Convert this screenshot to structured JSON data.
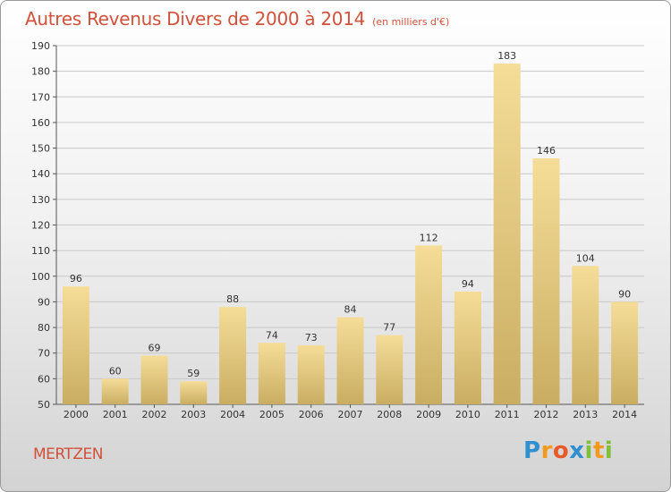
{
  "header": {
    "title": "Autres Revenus Divers de 2000 à 2014",
    "unit_note": "(en milliers d'€)"
  },
  "footer": {
    "commune": "MERTZEN",
    "logo_letters": [
      {
        "ch": "P",
        "color": "#2f8fd0"
      },
      {
        "ch": "r",
        "color": "#f39a1d"
      },
      {
        "ch": "o",
        "color": "#e85a2a"
      },
      {
        "ch": "x",
        "color": "#2f8fd0"
      },
      {
        "ch": "i",
        "color": "#7fbf3a"
      },
      {
        "ch": "t",
        "color": "#f39a1d"
      },
      {
        "ch": "i",
        "color": "#7fbf3a"
      }
    ]
  },
  "colors": {
    "bar_light": "#f5dd98",
    "bar_dark": "#c9ad62",
    "grid": "#c8c8c8",
    "axis": "#555555",
    "title": "#d2513a"
  },
  "chart_data": {
    "type": "bar",
    "title": "Autres Revenus Divers de 2000 à 2014",
    "xlabel": "",
    "ylabel": "",
    "categories": [
      "2000",
      "2001",
      "2002",
      "2003",
      "2004",
      "2005",
      "2006",
      "2007",
      "2008",
      "2009",
      "2010",
      "2011",
      "2012",
      "2013",
      "2014"
    ],
    "values": [
      96,
      60,
      69,
      59,
      88,
      74,
      73,
      84,
      77,
      112,
      94,
      183,
      146,
      104,
      90
    ],
    "ylim": [
      50,
      190
    ],
    "yticks": [
      50,
      60,
      70,
      80,
      90,
      100,
      110,
      120,
      130,
      140,
      150,
      160,
      170,
      180,
      190
    ],
    "grid": true,
    "legend": "none"
  }
}
